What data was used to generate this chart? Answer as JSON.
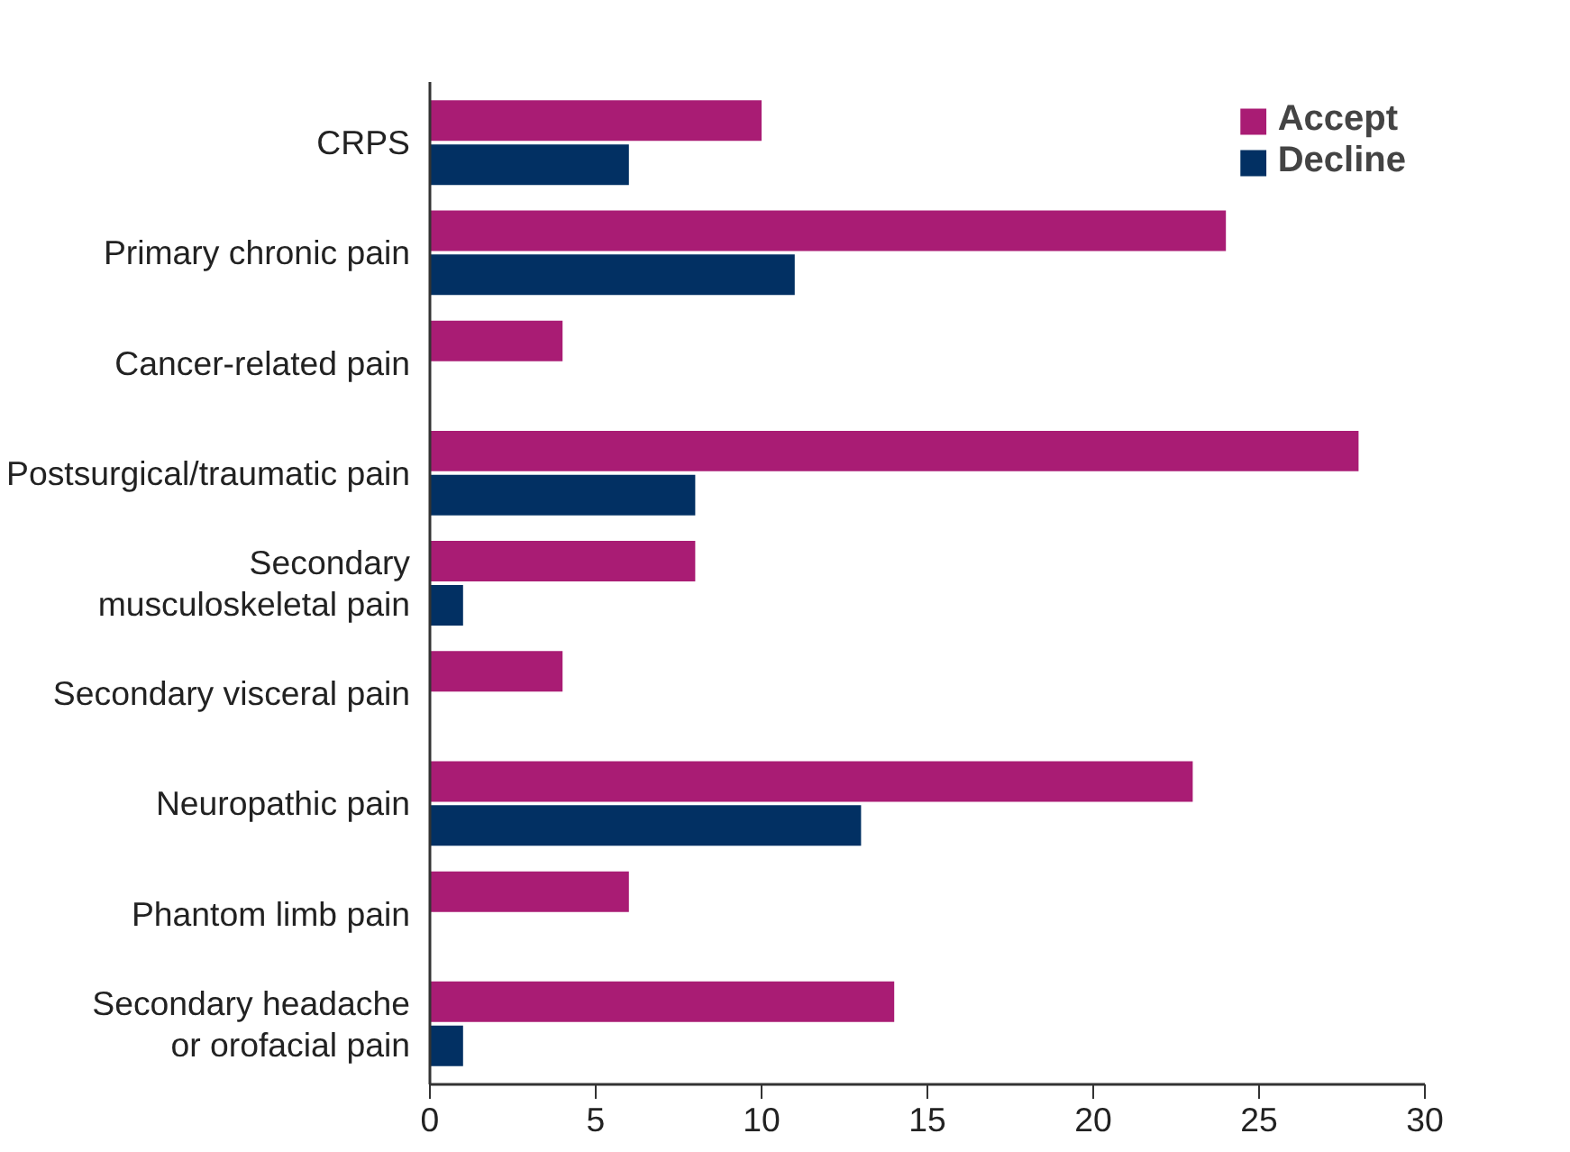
{
  "chart_data": {
    "type": "bar",
    "orientation": "horizontal",
    "categories": [
      "CRPS",
      "Primary chronic pain",
      "Cancer-related pain",
      "Postsurgical/traumatic pain",
      "Secondary musculoskeletal pain",
      "Secondary visceral pain",
      "Neuropathic pain",
      "Phantom limb pain",
      "Secondary headache or orofacial pain"
    ],
    "series": [
      {
        "name": "Accept",
        "color": "#a91c74",
        "values": [
          10,
          24,
          4,
          28,
          8,
          4,
          23,
          6,
          14
        ]
      },
      {
        "name": "Decline",
        "color": "#023063",
        "values": [
          6,
          11,
          0,
          8,
          1,
          0,
          13,
          0,
          1
        ]
      }
    ],
    "xlim": [
      0,
      30
    ],
    "xticks": [
      0,
      5,
      10,
      15,
      20,
      25,
      30
    ],
    "grid": false,
    "legend": "top right"
  }
}
